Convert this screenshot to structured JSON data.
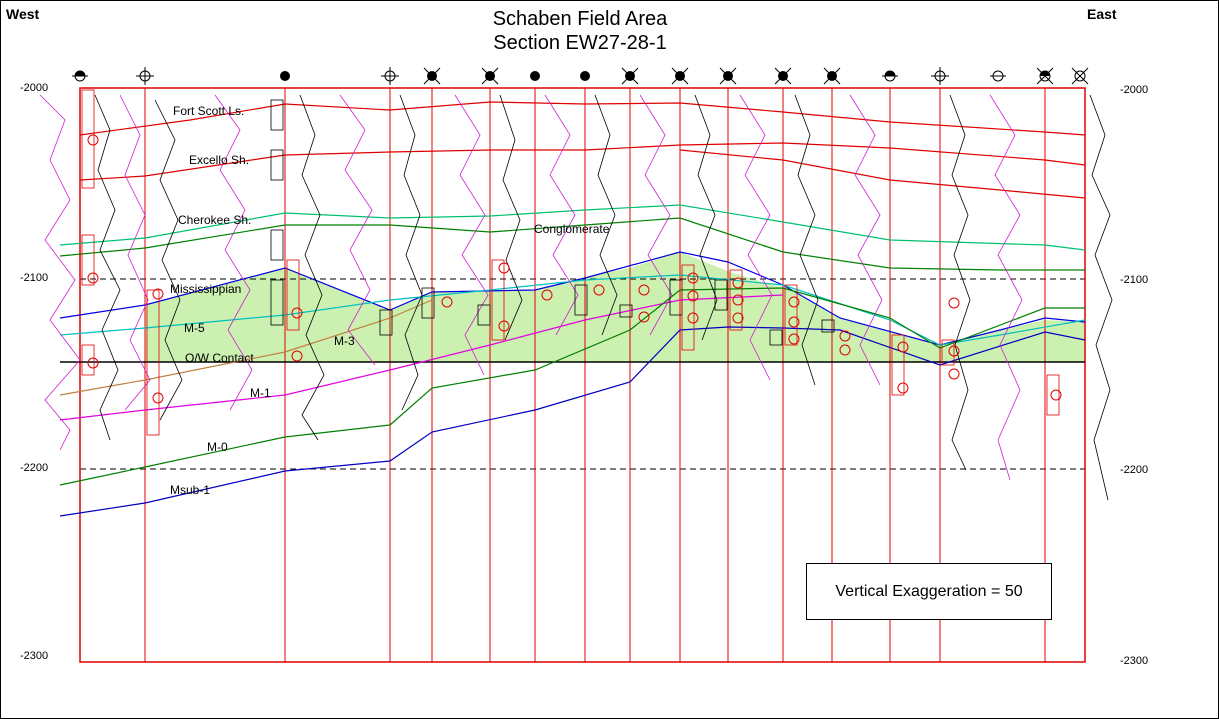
{
  "header": {
    "title_line1": "Schaben Field Area",
    "title_line2": "Section EW27-28-1",
    "west_label": "West",
    "east_label": "East"
  },
  "depth_axis": {
    "left_ticks": [
      "-2000",
      "-2100",
      "-2200",
      "-2300"
    ],
    "right_ticks": [
      "-2000",
      "-2100",
      "-2200",
      "-2300"
    ]
  },
  "formations": {
    "fort_scott": "Fort Scott Ls.",
    "excello": "Excello Sh.",
    "cherokee": "Cherokee Sh.",
    "conglomerate": "Conglomerate",
    "mississippian": "Mississippian",
    "m5": "M-5",
    "ow_contact": "O/W Contact",
    "m3": "M-3",
    "m1": "M-1",
    "m0": "M-0",
    "msub1": "Msub-1"
  },
  "note": {
    "vertical_exaggeration": "Vertical Exaggeration = 50"
  },
  "colors": {
    "frame": "#e00000",
    "fort_scott": "#e00000",
    "cherokee": "#00a000",
    "conglomerate_top": "#00c070",
    "mississippian_top": "#0000e0",
    "m5": "#00c0c0",
    "m3": "#c08040",
    "m1": "#e000e0",
    "m0": "#008000",
    "msub1": "#0000c0",
    "reservoir_fill": "#ccf0b0",
    "log_curve_gr": "#d020d0",
    "log_curve_res": "#000000"
  },
  "wells": [
    {
      "symbol": "half-filled-well-icon"
    },
    {
      "symbol": "open-well-icon"
    },
    {
      "symbol": "filled-well-icon"
    },
    {
      "symbol": "open-gas-well-icon"
    },
    {
      "symbol": "filled-gas-well-icon"
    },
    {
      "symbol": "filled-gas-well-icon"
    },
    {
      "symbol": "filled-well-icon"
    },
    {
      "symbol": "filled-well-icon"
    },
    {
      "symbol": "filled-gas-well-icon"
    },
    {
      "symbol": "filled-gas-well-icon"
    },
    {
      "symbol": "filled-gas-well-icon"
    },
    {
      "symbol": "filled-gas-well-icon"
    },
    {
      "symbol": "filled-gas-well-icon"
    },
    {
      "symbol": "half-filled-well-icon"
    },
    {
      "symbol": "open-well-icon"
    },
    {
      "symbol": "open-well-icon"
    },
    {
      "symbol": "half-filled-gas-well-icon"
    },
    {
      "symbol": "open-gas-well-icon"
    }
  ]
}
